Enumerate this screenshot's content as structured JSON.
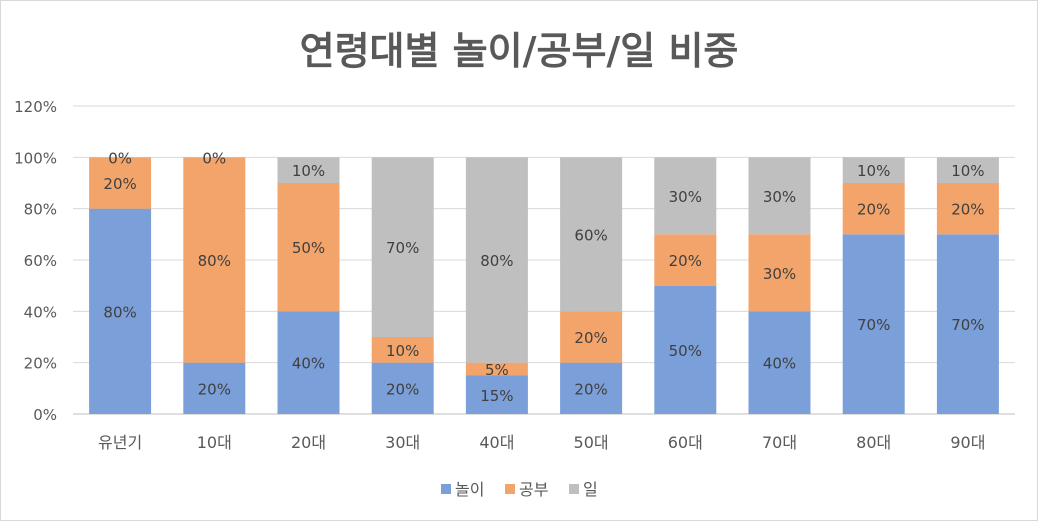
{
  "chart_data": {
    "type": "bar",
    "stacked": true,
    "title": "연령대별 놀이/공부/일 비중",
    "xlabel": "",
    "ylabel": "",
    "ylim": [
      0,
      120
    ],
    "yticks": [
      "0%",
      "20%",
      "40%",
      "60%",
      "80%",
      "100%",
      "120%"
    ],
    "grid": true,
    "legend_position": "bottom",
    "categories": [
      "유년기",
      "10대",
      "20대",
      "30대",
      "40대",
      "50대",
      "60대",
      "70대",
      "80대",
      "90대"
    ],
    "series": [
      {
        "name": "놀이",
        "color": "#7A9FD9",
        "values": [
          80,
          20,
          40,
          20,
          15,
          20,
          50,
          40,
          70,
          70
        ]
      },
      {
        "name": "공부",
        "color": "#F3A46A",
        "values": [
          20,
          80,
          50,
          10,
          5,
          20,
          20,
          30,
          20,
          20
        ]
      },
      {
        "name": "일",
        "color": "#BFBFBF",
        "values": [
          0,
          0,
          10,
          70,
          80,
          60,
          30,
          30,
          10,
          10
        ]
      }
    ]
  }
}
